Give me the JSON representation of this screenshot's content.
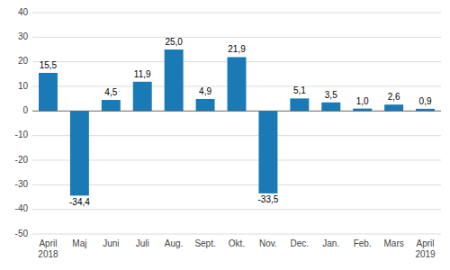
{
  "chart_data": {
    "type": "bar",
    "categories": [
      "April\n2018",
      "Maj",
      "Juni",
      "Juli",
      "Aug.",
      "Sept.",
      "Okt.",
      "Nov.",
      "Dec.",
      "Jan.",
      "Feb.",
      "Mars",
      "April\n2019"
    ],
    "values": [
      15.5,
      -34.4,
      4.5,
      11.9,
      25.0,
      4.9,
      21.9,
      -33.5,
      5.1,
      3.5,
      1.0,
      2.6,
      0.9
    ],
    "value_labels": [
      "15,5",
      "-34,4",
      "4,5",
      "11,9",
      "25,0",
      "4,9",
      "21,9",
      "-33,5",
      "5,1",
      "3,5",
      "1,0",
      "2,6",
      "0,9"
    ],
    "data_labels": true,
    "color": "#1a7ab5",
    "ylim": [
      -50,
      40
    ],
    "yticks": [
      -50,
      -40,
      -30,
      -20,
      -10,
      0,
      10,
      20,
      30,
      40
    ],
    "grid": true
  }
}
